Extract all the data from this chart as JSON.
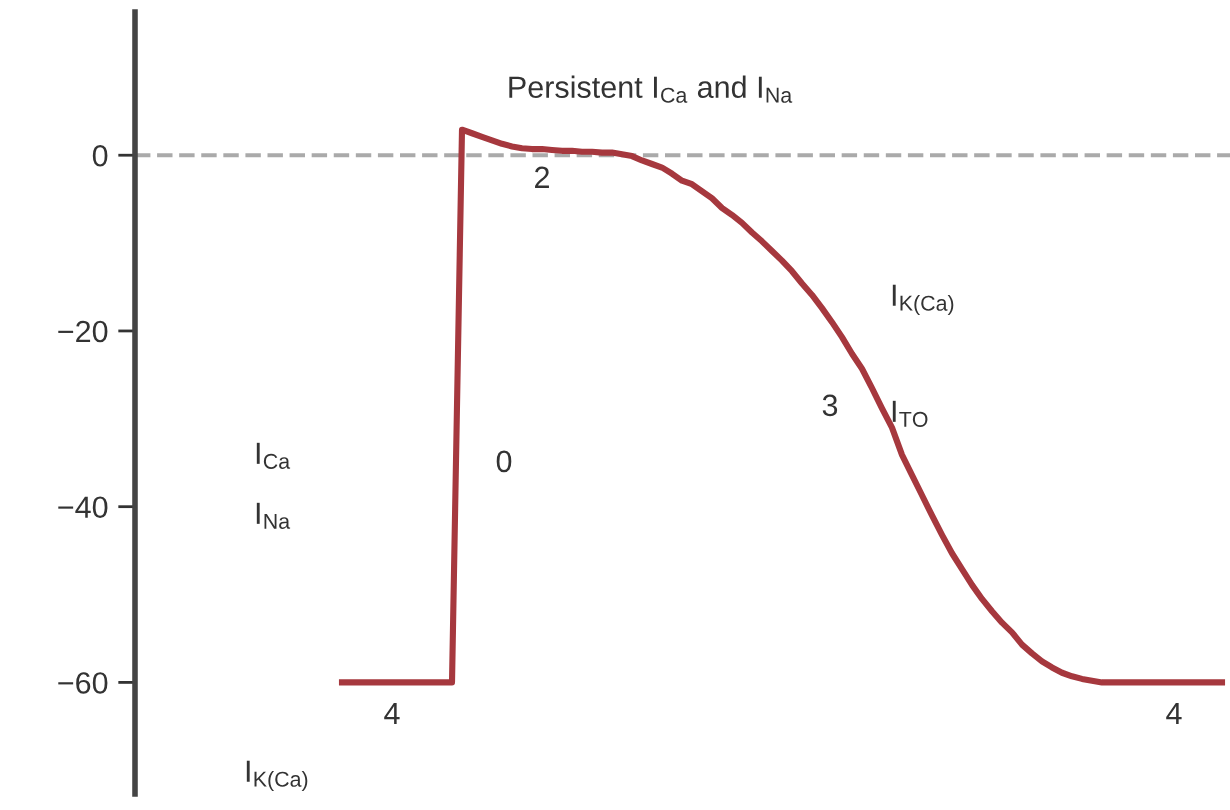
{
  "chart_data": {
    "type": "line",
    "categories": [
      null,
      null,
      null,
      null,
      null,
      null,
      null,
      null,
      null,
      null,
      null,
      null,
      null,
      null,
      null,
      null,
      null,
      null,
      null,
      null,
      null,
      null,
      null,
      null,
      null,
      null,
      null,
      null,
      null,
      null,
      null,
      null,
      null,
      null,
      null,
      null,
      null,
      null,
      null,
      null,
      null,
      null,
      null,
      null,
      null,
      null,
      null,
      null,
      null,
      null,
      null,
      null,
      null,
      null,
      null,
      null,
      null,
      null,
      null,
      null,
      null,
      null,
      null,
      null,
      null,
      null,
      null,
      null,
      null,
      null,
      null,
      null,
      null,
      null,
      null,
      null,
      null,
      null,
      null,
      null,
      null,
      null,
      null,
      null,
      null,
      null,
      null,
      null,
      null
    ],
    "series": [
      {
        "color": "#a6383e",
        "values": [
          -60,
          -60,
          -60,
          -60,
          -60,
          -60,
          -60,
          -60,
          -60,
          -60,
          -60,
          -60,
          2.9,
          2.5,
          2.1,
          1.7,
          1.3,
          1.0,
          0.8,
          0.7,
          0.7,
          0.6,
          0.5,
          0.5,
          0.4,
          0.4,
          0.3,
          0.3,
          0.1,
          -0.1,
          -0.6,
          -1.0,
          -1.4,
          -2.1,
          -2.9,
          -3.3,
          -4.1,
          -4.9,
          -6.0,
          -6.8,
          -7.7,
          -8.8,
          -9.8,
          -10.9,
          -12.0,
          -13.2,
          -14.6,
          -15.9,
          -17.4,
          -19.0,
          -20.7,
          -22.6,
          -24.3,
          -26.5,
          -28.8,
          -31.0,
          -34.1,
          -36.4,
          -38.7,
          -41.0,
          -43.2,
          -45.3,
          -47.1,
          -48.9,
          -50.5,
          -51.9,
          -53.2,
          -54.3,
          -55.7,
          -56.7,
          -57.6,
          -58.3,
          -58.9,
          -59.3,
          -59.6,
          -59.8,
          -60,
          -60,
          -60,
          -60,
          -60,
          -60,
          -60,
          -60,
          -60,
          -60,
          -60,
          -60,
          -60
        ]
      }
    ],
    "ylim": [
      -72.7,
      16.3
    ],
    "yticks": [
      {
        "value": 0,
        "label": "0"
      },
      {
        "value": -20,
        "label": "−20"
      },
      {
        "value": -40,
        "label": "−40"
      },
      {
        "value": -60,
        "label": "−60"
      }
    ],
    "tick_labels": "y",
    "grid": false,
    "legend": false,
    "marker": "none",
    "line_style": "solid",
    "ref_lines": [
      {
        "axis": "y",
        "value": 0,
        "color": "#aaaaaa",
        "line_style": "dashed"
      }
    ],
    "annotations": [
      "Persistent I$_{Ca}$ and I$_{Na}$",
      "2",
      "I$_{K(Ca)}$",
      "3",
      "I$_{TO}$",
      "I$_{Ca}$",
      "0",
      "I$_{Na}$",
      "4",
      "4",
      "I$_{K(Ca)}$"
    ]
  }
}
